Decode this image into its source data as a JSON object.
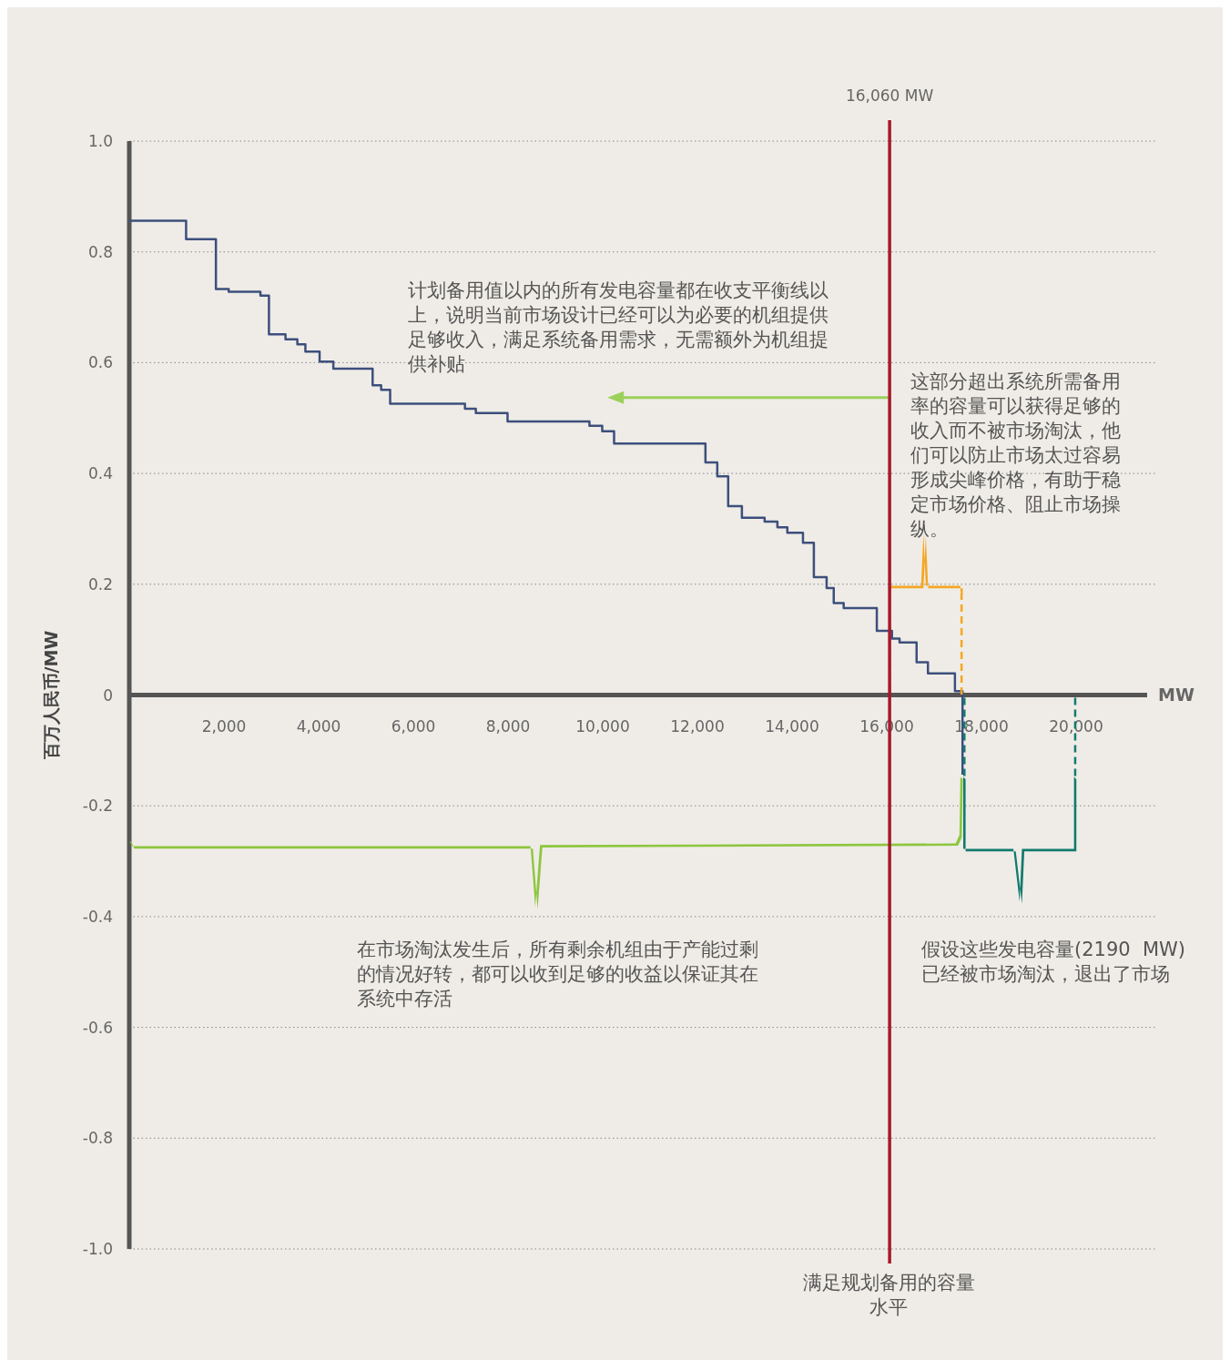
{
  "chart_data": {
    "type": "step",
    "xlabel": "MW",
    "ylabel": "百万人民币/MW",
    "xlim": [
      0,
      21500
    ],
    "ylim": [
      -1,
      1
    ],
    "xticks": [
      {
        "value": 2000,
        "label": "2,000"
      },
      {
        "value": 4000,
        "label": "4,000"
      },
      {
        "value": 6000,
        "label": "6,000"
      },
      {
        "value": 8000,
        "label": "8,000"
      },
      {
        "value": 10000,
        "label": "10,000"
      },
      {
        "value": 12000,
        "label": "12,000"
      },
      {
        "value": 14000,
        "label": "14,000"
      },
      {
        "value": 16000,
        "label": "16,000"
      },
      {
        "value": 18000,
        "label": "18,000"
      },
      {
        "value": 20000,
        "label": "20,000"
      }
    ],
    "yticks": [
      {
        "value": 1,
        "label": "1.0"
      },
      0.8,
      0.6,
      0.4,
      0.2,
      0,
      -0.2,
      -0.4,
      -0.6,
      -0.8,
      {
        "value": -1,
        "label": "-1.0"
      }
    ],
    "grid": "y",
    "marker": "none",
    "line_style": "solid",
    "series": [
      {
        "color": "#3d4f7c",
        "x": [
          0,
          1200,
          1830,
          2100,
          2770,
          2950,
          3300,
          3550,
          3720,
          4020,
          4310,
          5140,
          5320,
          5510,
          7090,
          7320,
          7990,
          9720,
          9990,
          10240,
          12170,
          12420,
          12650,
          12940,
          13420,
          13690,
          13900,
          14230,
          14460,
          14730,
          14880,
          15090,
          15790,
          16110,
          16270,
          16630,
          16870,
          17440,
          17600
        ],
        "values": [
          0.856,
          0.823,
          0.733,
          0.728,
          0.721,
          0.651,
          0.642,
          0.633,
          0.62,
          0.602,
          0.589,
          0.559,
          0.551,
          0.526,
          0.517,
          0.509,
          0.494,
          0.486,
          0.476,
          0.454,
          0.42,
          0.395,
          0.341,
          0.32,
          0.313,
          0.303,
          0.293,
          0.275,
          0.213,
          0.193,
          0.166,
          0.157,
          0.116,
          0.102,
          0.095,
          0.059,
          0.039,
          0.007,
          -0.144
        ]
      }
    ],
    "ref_lines": [
      {
        "axis": "x",
        "value": 16060,
        "label": "16,060 MW",
        "color": "#a6192e"
      }
    ],
    "annotations": [
      "计划备用值以内的所有发电容量都在收支平衡线以上，说明当前市场设计已经可以为必要的机组提供足够收入，满足系统备用需求，无需额外为机组提供补贴",
      "这部分超出系统所需备用率的容量可以获得足够的收入而不被市场淘汰，他们可以防止市场太过容易形成尖峰价格，有助于稳定市场价格、阻止市场操纵。",
      "在市场淘汰发生后，所有剩余机组由于产能过剩的情况好转，都可以收到足够的收益以保证其在系统中存活",
      "假设这些发电容量(2190  MW)已经被市场淘汰，退出了市场",
      "满足规划备用的容量水平"
    ]
  }
}
